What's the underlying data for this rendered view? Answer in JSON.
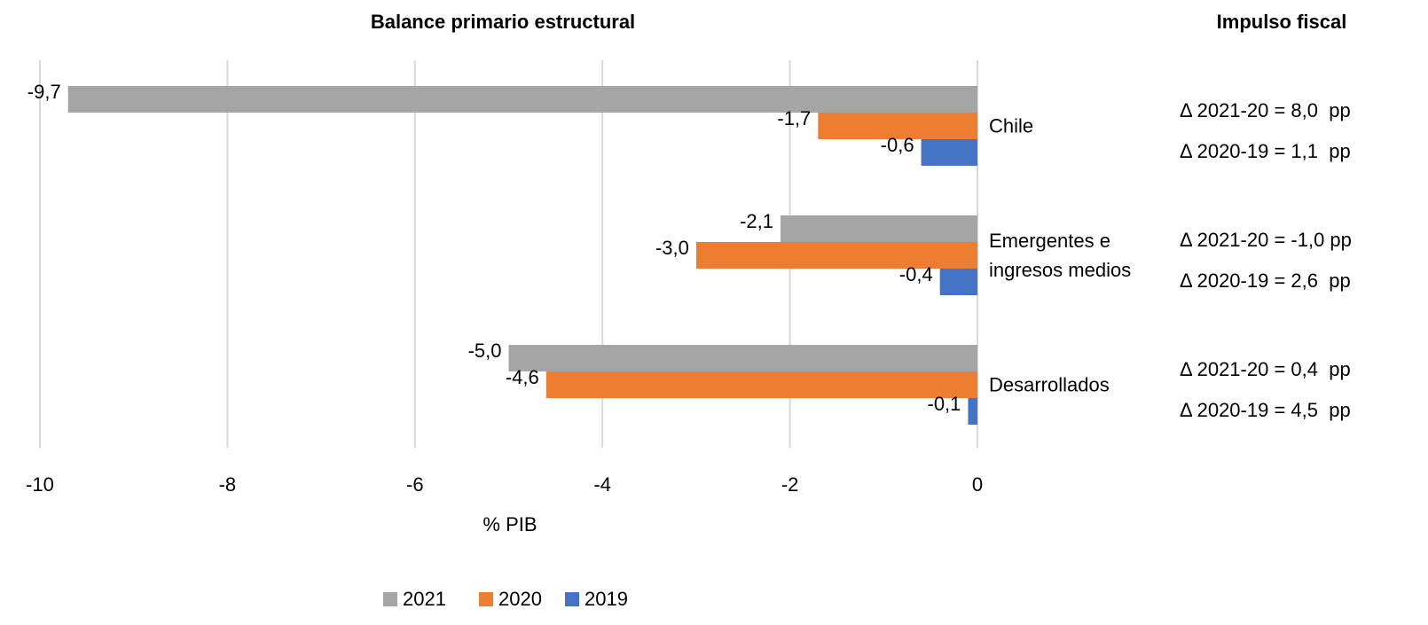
{
  "chart_data": {
    "type": "barh",
    "title": "Balance primario estructural",
    "xlabel": "% PIB",
    "categories": [
      "Chile",
      "Emergentes e ingresos medios",
      "Desarrollados"
    ],
    "series": [
      {
        "name": "2021",
        "color": "#a5a5a5",
        "values": [
          -9.7,
          -2.1,
          -5.0
        ],
        "value_labels": [
          "-9,7",
          "-2,1",
          "-5,0"
        ]
      },
      {
        "name": "2020",
        "color": "#ed7d31",
        "values": [
          -1.7,
          -3.0,
          -4.6
        ],
        "value_labels": [
          "-1,7",
          "-3,0",
          "-4,6"
        ]
      },
      {
        "name": "2019",
        "color": "#4472c4",
        "values": [
          -0.6,
          -0.4,
          -0.1
        ],
        "value_labels": [
          "-0,6",
          "-0,4",
          "-0,1"
        ]
      }
    ],
    "xlim": [
      -10,
      0
    ],
    "xticks": [
      -10,
      -8,
      -6,
      -4,
      -2,
      0
    ],
    "grid": true,
    "legend": "bottom",
    "annotations_title": "Impulso fiscal",
    "annotations": [
      [
        "Δ 2021-20 = 8,0  pp",
        "Δ 2020-19 = 1,1  pp"
      ],
      [
        "Δ 2021-20 = -1,0 pp",
        "Δ 2020-19 = 2,6  pp"
      ],
      [
        "Δ 2021-20 = 0,4  pp",
        "Δ 2020-19 = 4,5  pp"
      ]
    ]
  }
}
